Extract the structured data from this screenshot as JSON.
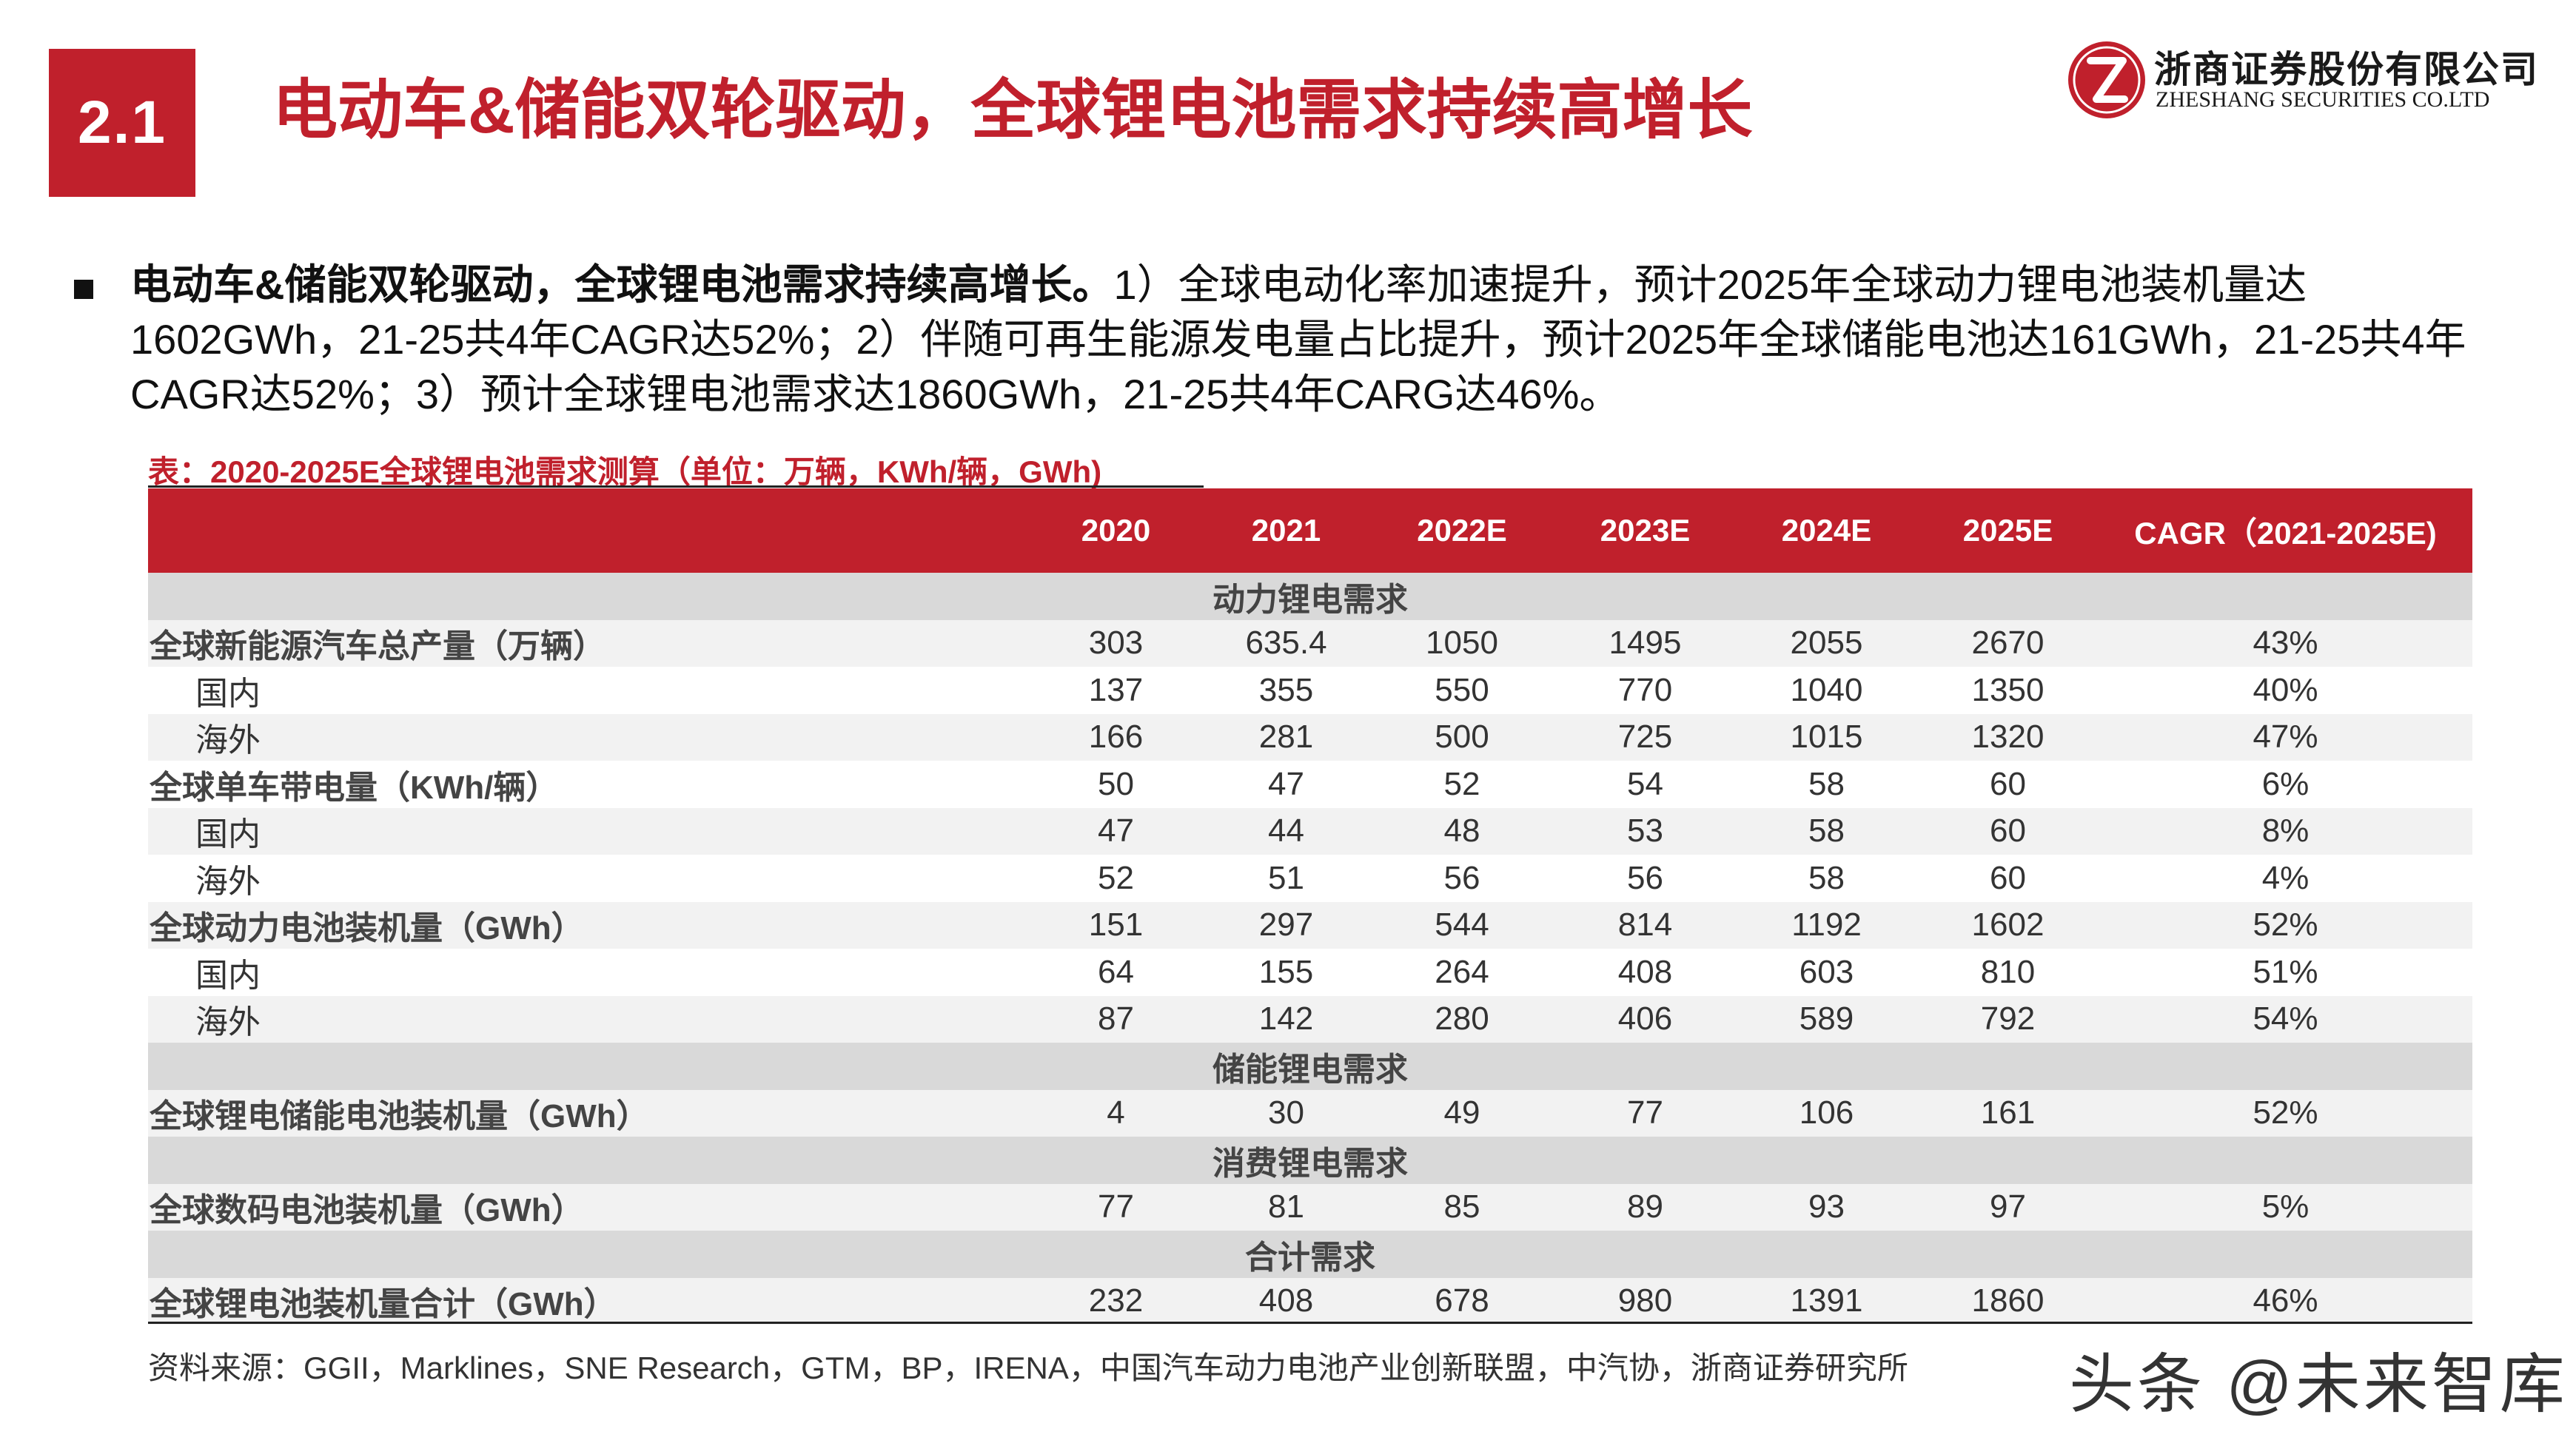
{
  "header": {
    "section_number": "2.1",
    "title": "电动车&储能双轮驱动，全球锂电池需求持续高增长",
    "company_cn": "浙商证券股份有限公司",
    "company_en": "ZHESHANG SECURITIES CO.LTD"
  },
  "summary": {
    "lead": "电动车&储能双轮驱动，全球锂电池需求持续高增长。",
    "body": "1）全球电动化率加速提升，预计2025年全球动力锂电池装机量达1602GWh，21-25共4年CAGR达52%；2）伴随可再生能源发电量占比提升，预计2025年全球储能电池达161GWh，21-25共4年CAGR达52%；3）预计全球锂电池需求达1860GWh，21-25共4年CARG达46%。"
  },
  "table": {
    "caption": "表：2020-2025E全球锂电池需求测算（单位：万辆，KWh/辆，GWh)",
    "columns": [
      "2020",
      "2021",
      "2022E",
      "2023E",
      "2024E",
      "2025E",
      "CAGR（2021-2025E)"
    ],
    "sections": [
      {
        "title": "动力锂电需求",
        "rows": [
          {
            "label": "全球新能源汽车总产量（万辆）",
            "values": [
              "303",
              "635.4",
              "1050",
              "1495",
              "2055",
              "2670",
              "43%"
            ]
          },
          {
            "label": "国内",
            "values": [
              "137",
              "355",
              "550",
              "770",
              "1040",
              "1350",
              "40%"
            ]
          },
          {
            "label": "海外",
            "values": [
              "166",
              "281",
              "500",
              "725",
              "1015",
              "1320",
              "47%"
            ]
          },
          {
            "label": "全球单车带电量（KWh/辆）",
            "values": [
              "50",
              "47",
              "52",
              "54",
              "58",
              "60",
              "6%"
            ]
          },
          {
            "label": "国内",
            "values": [
              "47",
              "44",
              "48",
              "53",
              "58",
              "60",
              "8%"
            ]
          },
          {
            "label": "海外",
            "values": [
              "52",
              "51",
              "56",
              "56",
              "58",
              "60",
              "4%"
            ]
          },
          {
            "label": "全球动力电池装机量（GWh）",
            "values": [
              "151",
              "297",
              "544",
              "814",
              "1192",
              "1602",
              "52%"
            ]
          },
          {
            "label": "国内",
            "values": [
              "64",
              "155",
              "264",
              "408",
              "603",
              "810",
              "51%"
            ]
          },
          {
            "label": "海外",
            "values": [
              "87",
              "142",
              "280",
              "406",
              "589",
              "792",
              "54%"
            ]
          }
        ]
      },
      {
        "title": "储能锂电需求",
        "rows": [
          {
            "label": "全球锂电储能电池装机量（GWh）",
            "values": [
              "4",
              "30",
              "49",
              "77",
              "106",
              "161",
              "52%"
            ]
          }
        ]
      },
      {
        "title": "消费锂电需求",
        "rows": [
          {
            "label": "全球数码电池装机量（GWh）",
            "values": [
              "77",
              "81",
              "85",
              "89",
              "93",
              "97",
              "5%"
            ]
          }
        ]
      },
      {
        "title": "合计需求",
        "rows": [
          {
            "label": "全球锂电池装机量合计（GWh）",
            "values": [
              "232",
              "408",
              "678",
              "980",
              "1391",
              "1860",
              "46%"
            ]
          }
        ]
      }
    ]
  },
  "source": "资料来源：GGII，Marklines，SNE Research，GTM，BP，IRENA，中国汽车动力电池产业创新联盟，中汽协，浙商证券研究所",
  "watermark": "头条 @未来智库",
  "colors": {
    "brand_red": "#c0202c",
    "section_gray": "#d9d9d9",
    "row_shade": "#f2f2f2"
  }
}
